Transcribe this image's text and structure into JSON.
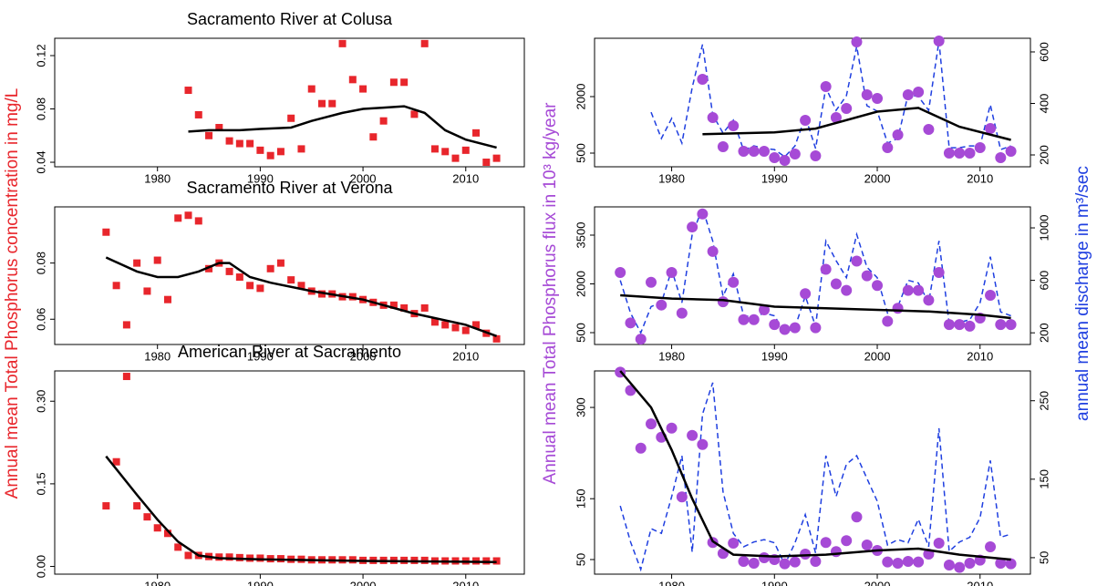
{
  "chart_data": [
    {
      "type": "scatter",
      "title": "Sacramento River at Colusa",
      "ylabel": "Annual mean Total Phosphorus concentration in mg/L",
      "xlim": [
        1970,
        2015.7
      ],
      "xticks": [
        1980,
        1990,
        2000,
        2010
      ],
      "ylim": [
        0.0366,
        0.133
      ],
      "yticks": [
        0.04,
        0.08,
        0.12
      ],
      "series": [
        {
          "kind": "points",
          "marker": "square",
          "color": "#e8262c",
          "x": [
            1983,
            1984,
            1985,
            1986,
            1987,
            1988,
            1989,
            1990,
            1991,
            1992,
            1993,
            1994,
            1995,
            1996,
            1997,
            1998,
            1999,
            2000,
            2001,
            2002,
            2003,
            2004,
            2005,
            2006,
            2007,
            2008,
            2009,
            2010,
            2011,
            2012,
            2013
          ],
          "values": [
            0.094,
            0.0756,
            0.06,
            0.066,
            0.056,
            0.054,
            0.054,
            0.049,
            0.045,
            0.048,
            0.073,
            0.05,
            0.095,
            0.084,
            0.084,
            0.129,
            0.102,
            0.095,
            0.059,
            0.071,
            0.1,
            0.1,
            0.076,
            0.129,
            0.05,
            0.048,
            0.043,
            0.049,
            0.062,
            0.04,
            0.043
          ]
        },
        {
          "kind": "line",
          "color": "#000000",
          "x": [
            1983,
            1985,
            1988,
            1990,
            1993,
            1995,
            1998,
            2000,
            2002,
            2004,
            2006,
            2008,
            2010,
            2013
          ],
          "values": [
            0.063,
            0.064,
            0.064,
            0.065,
            0.066,
            0.071,
            0.077,
            0.08,
            0.081,
            0.082,
            0.077,
            0.064,
            0.057,
            0.051
          ]
        }
      ]
    },
    {
      "type": "scatter",
      "title": "Sacramento River at Verona",
      "xlim": [
        1970,
        2015.7
      ],
      "xticks": [
        1980,
        1990,
        2000,
        2010
      ],
      "ylim": [
        0.051,
        0.1
      ],
      "yticks": [
        0.06,
        0.08
      ],
      "series": [
        {
          "kind": "points",
          "marker": "square",
          "color": "#e8262c",
          "x": [
            1975,
            1976,
            1977,
            1978,
            1979,
            1980,
            1981,
            1982,
            1983,
            1984,
            1985,
            1986,
            1987,
            1988,
            1989,
            1990,
            1991,
            1992,
            1993,
            1994,
            1995,
            1996,
            1997,
            1998,
            1999,
            2000,
            2001,
            2002,
            2003,
            2004,
            2005,
            2006,
            2007,
            2008,
            2009,
            2010,
            2011,
            2012,
            2013
          ],
          "values": [
            0.091,
            0.072,
            0.058,
            0.08,
            0.07,
            0.081,
            0.067,
            0.096,
            0.097,
            0.095,
            0.078,
            0.08,
            0.077,
            0.075,
            0.072,
            0.071,
            0.078,
            0.08,
            0.074,
            0.072,
            0.07,
            0.069,
            0.069,
            0.068,
            0.068,
            0.067,
            0.066,
            0.065,
            0.065,
            0.064,
            0.062,
            0.064,
            0.059,
            0.058,
            0.057,
            0.056,
            0.058,
            0.055,
            0.053
          ]
        },
        {
          "kind": "line",
          "color": "#000000",
          "x": [
            1975,
            1978,
            1980,
            1982,
            1984,
            1986,
            1987,
            1989,
            1991,
            1995,
            2000,
            2005,
            2010,
            2013
          ],
          "values": [
            0.082,
            0.077,
            0.075,
            0.075,
            0.077,
            0.08,
            0.08,
            0.075,
            0.073,
            0.07,
            0.067,
            0.062,
            0.058,
            0.054
          ]
        }
      ]
    },
    {
      "type": "scatter",
      "title": "American River at Sacramento",
      "xlim": [
        1970,
        2015.7
      ],
      "xticks": [
        1980,
        1990,
        2000,
        2010
      ],
      "ylim": [
        -0.014,
        0.355
      ],
      "yticks": [
        {
          "value": 0,
          "label": "0.00"
        },
        0.15,
        {
          "value": 0.3,
          "label": "0.30"
        }
      ],
      "series": [
        {
          "kind": "points",
          "marker": "square",
          "color": "#e8262c",
          "x": [
            1975,
            1976,
            1977,
            1978,
            1979,
            1980,
            1981,
            1982,
            1983,
            1984,
            1985,
            1986,
            1987,
            1988,
            1989,
            1990,
            1991,
            1992,
            1993,
            1994,
            1995,
            1996,
            1997,
            1998,
            1999,
            2000,
            2001,
            2002,
            2003,
            2004,
            2005,
            2006,
            2007,
            2008,
            2009,
            2010,
            2011,
            2012,
            2013
          ],
          "values": [
            0.11,
            0.19,
            0.345,
            0.11,
            0.09,
            0.07,
            0.06,
            0.035,
            0.02,
            0.02,
            0.018,
            0.017,
            0.017,
            0.016,
            0.015,
            0.015,
            0.014,
            0.014,
            0.013,
            0.013,
            0.012,
            0.012,
            0.012,
            0.012,
            0.012,
            0.011,
            0.011,
            0.011,
            0.011,
            0.011,
            0.011,
            0.011,
            0.01,
            0.01,
            0.01,
            0.01,
            0.01,
            0.01,
            0.01
          ]
        },
        {
          "kind": "line",
          "color": "#000000",
          "x": [
            1975,
            1978,
            1980,
            1982,
            1984,
            1986,
            1990,
            2000,
            2013
          ],
          "values": [
            0.2,
            0.13,
            0.085,
            0.045,
            0.02,
            0.015,
            0.013,
            0.01,
            0.008
          ]
        }
      ]
    },
    {
      "type": "scatter",
      "ylabel": "Annual mean Total Phosphorus flux in 10³ kg/year",
      "y2label": "annual mean discharge in m³/sec",
      "xlim": [
        1972.5,
        2014.9
      ],
      "xticks": [
        1980,
        1990,
        2000,
        2010
      ],
      "ylim": [
        137,
        3548
      ],
      "yticks": [
        500,
        2000
      ],
      "y2lim": [
        154,
        653
      ],
      "y2ticks": [
        200,
        400,
        600
      ],
      "series": [
        {
          "kind": "dashed",
          "axis": "y2",
          "color": "#1f3fe0",
          "x": [
            1978,
            1979,
            1980,
            1981,
            1982,
            1983,
            1984,
            1985,
            1986,
            1987,
            1988,
            1989,
            1990,
            1991,
            1992,
            1993,
            1994,
            1995,
            1996,
            1997,
            1998,
            1999,
            2000,
            2001,
            2002,
            2003,
            2004,
            2005,
            2006,
            2007,
            2008,
            2009,
            2010,
            2011,
            2012,
            2013
          ],
          "values": [
            366,
            264,
            342,
            246,
            462,
            629,
            356,
            285,
            335,
            218,
            235,
            225,
            221,
            193,
            235,
            349,
            225,
            462,
            373,
            430,
            622,
            391,
            370,
            246,
            264,
            434,
            427,
            373,
            642,
            228,
            228,
            235,
            235,
            395,
            221,
            235
          ]
        },
        {
          "kind": "points",
          "marker": "circle",
          "color": "#a64ad6",
          "x": [
            1983,
            1984,
            1985,
            1986,
            1987,
            1988,
            1989,
            1990,
            1991,
            1992,
            1993,
            1994,
            1995,
            1996,
            1997,
            1998,
            1999,
            2000,
            2001,
            2002,
            2003,
            2004,
            2005,
            2006,
            2007,
            2008,
            2009,
            2010,
            2011,
            2012,
            2013
          ],
          "values": [
            2460,
            1443,
            669,
            1226,
            548,
            548,
            548,
            379,
            306,
            476,
            1371,
            427,
            2266,
            1443,
            1685,
            3452,
            2048,
            1952,
            645,
            984,
            2048,
            2121,
            1129,
            3476,
            500,
            500,
            500,
            645,
            1153,
            379,
            548
          ]
        },
        {
          "kind": "line",
          "color": "#000000",
          "x": [
            1983,
            1990,
            1994,
            2000,
            2004,
            2008,
            2013
          ],
          "values": [
            1000,
            1050,
            1150,
            1600,
            1700,
            1200,
            850
          ]
        }
      ]
    },
    {
      "type": "scatter",
      "xlim": [
        1972.5,
        2014.9
      ],
      "xticks": [
        1980,
        1990,
        2000,
        2010
      ],
      "ylim": [
        136,
        4369
      ],
      "yticks": [
        500,
        2000,
        3500
      ],
      "y2lim": [
        111,
        1160
      ],
      "y2ticks": [
        200,
        600,
        1000
      ],
      "series": [
        {
          "kind": "dashed",
          "axis": "y2",
          "color": "#1f3fe0",
          "x": [
            1975,
            1976,
            1977,
            1978,
            1979,
            1980,
            1981,
            1982,
            1983,
            1984,
            1985,
            1986,
            1987,
            1988,
            1989,
            1990,
            1991,
            1992,
            1993,
            1994,
            1995,
            1996,
            1997,
            1998,
            1999,
            2000,
            2001,
            2002,
            2003,
            2004,
            2005,
            2006,
            2007,
            2008,
            2009,
            2010,
            2011,
            2012,
            2013
          ],
          "values": [
            600,
            350,
            200,
            400,
            430,
            680,
            430,
            950,
            1150,
            900,
            480,
            650,
            330,
            320,
            350,
            330,
            200,
            240,
            480,
            250,
            900,
            750,
            620,
            950,
            700,
            620,
            350,
            400,
            600,
            580,
            430,
            900,
            270,
            280,
            300,
            430,
            780,
            360,
            330
          ]
        },
        {
          "kind": "points",
          "marker": "circle",
          "color": "#a64ad6",
          "x": [
            1975,
            1976,
            1977,
            1978,
            1979,
            1980,
            1981,
            1982,
            1983,
            1984,
            1985,
            1986,
            1987,
            1988,
            1989,
            1990,
            1991,
            1992,
            1993,
            1994,
            1995,
            1996,
            1997,
            1998,
            1999,
            2000,
            2001,
            2002,
            2003,
            2004,
            2005,
            2006,
            2007,
            2008,
            2009,
            2010,
            2011,
            2012,
            2013
          ],
          "values": [
            2350,
            800,
            300,
            2050,
            1350,
            2350,
            1100,
            3750,
            4150,
            3000,
            1450,
            2050,
            900,
            900,
            1200,
            750,
            600,
            650,
            1700,
            650,
            2450,
            2000,
            1800,
            2700,
            2250,
            1950,
            850,
            1250,
            1800,
            1800,
            1500,
            2350,
            750,
            750,
            700,
            950,
            1650,
            750,
            750
          ]
        },
        {
          "kind": "line",
          "color": "#000000",
          "x": [
            1975,
            1980,
            1985,
            1990,
            1995,
            2000,
            2005,
            2010,
            2013
          ],
          "values": [
            1650,
            1550,
            1500,
            1300,
            1250,
            1200,
            1150,
            1050,
            950
          ]
        }
      ]
    },
    {
      "type": "scatter",
      "xlim": [
        1972.5,
        2014.9
      ],
      "xticks": [
        1980,
        1990,
        2000,
        2010
      ],
      "ylim": [
        26,
        360
      ],
      "yticks": [
        50,
        150,
        300
      ],
      "y2lim": [
        29,
        288
      ],
      "y2ticks": [
        50,
        150,
        250
      ],
      "series": [
        {
          "kind": "dashed",
          "axis": "y2",
          "color": "#1f3fe0",
          "x": [
            1975,
            1976,
            1977,
            1978,
            1979,
            1980,
            1981,
            1982,
            1983,
            1984,
            1985,
            1986,
            1987,
            1988,
            1989,
            1990,
            1991,
            1992,
            1993,
            1994,
            1995,
            1996,
            1997,
            1998,
            1999,
            2000,
            2001,
            2002,
            2003,
            2004,
            2005,
            2006,
            2007,
            2008,
            2009,
            2010,
            2011,
            2012,
            2013
          ],
          "values": [
            116,
            70,
            35,
            87,
            81,
            128,
            180,
            57,
            233,
            273,
            134,
            81,
            64,
            70,
            73,
            69,
            41,
            69,
            105,
            56,
            180,
            128,
            169,
            180,
            151,
            122,
            66,
            73,
            69,
            99,
            64,
            215,
            58,
            70,
            76,
            101,
            174,
            76,
            80
          ]
        },
        {
          "kind": "points",
          "marker": "circle",
          "color": "#a64ad6",
          "x": [
            1975,
            1976,
            1977,
            1978,
            1979,
            1980,
            1981,
            1982,
            1983,
            1984,
            1985,
            1986,
            1987,
            1988,
            1989,
            1990,
            1991,
            1992,
            1993,
            1994,
            1995,
            1996,
            1997,
            1998,
            1999,
            2000,
            2001,
            2002,
            2003,
            2004,
            2005,
            2006,
            2007,
            2008,
            2009,
            2010,
            2011,
            2012,
            2013
          ],
          "values": [
            358,
            328,
            233,
            273,
            251,
            266,
            153,
            254,
            239,
            78,
            60,
            77,
            47,
            44,
            53,
            50,
            43,
            46,
            59,
            47,
            78,
            63,
            81,
            120,
            74,
            65,
            46,
            44,
            47,
            46,
            59,
            77,
            41,
            37,
            44,
            49,
            71,
            44,
            43
          ]
        },
        {
          "kind": "line",
          "color": "#000000",
          "x": [
            1975,
            1978,
            1980,
            1982,
            1984,
            1986,
            1990,
            1995,
            2000,
            2004,
            2008,
            2013
          ],
          "values": [
            360,
            300,
            230,
            150,
            80,
            58,
            55,
            58,
            65,
            68,
            58,
            50
          ]
        }
      ]
    }
  ]
}
